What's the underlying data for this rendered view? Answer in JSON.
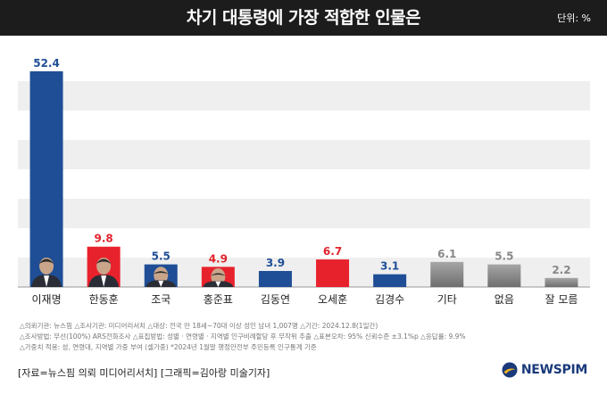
{
  "header": {
    "title": "차기 대통령에 가장 적합한 인물은",
    "unit": "단위: %"
  },
  "chart_data": {
    "type": "bar",
    "title": "차기 대통령에 가장 적합한 인물은",
    "ylabel": "단위: %",
    "ylim": [
      0,
      55
    ],
    "categories": [
      "이재명",
      "한동훈",
      "조국",
      "홍준표",
      "김동연",
      "오세훈",
      "김경수",
      "기타",
      "없음",
      "잘 모름"
    ],
    "values": [
      52.4,
      9.8,
      5.5,
      4.9,
      3.9,
      6.7,
      3.1,
      6.1,
      5.5,
      2.2
    ],
    "labels": [
      "52.4",
      "9.8",
      "5.5",
      "4.9",
      "3.9",
      "6.7",
      "3.1",
      "6.1",
      "5.5",
      "2.2"
    ],
    "colors": [
      "#1f4e96",
      "#e8222c",
      "#1f4e96",
      "#e8222c",
      "#1f4e96",
      "#e8222c",
      "#1f4e96",
      "#8c8c8c",
      "#8c8c8c",
      "#8c8c8c"
    ],
    "label_colors": [
      "#1f4e96",
      "#e0242c",
      "#1f4e96",
      "#e0242c",
      "#1f4e96",
      "#e0242c",
      "#1f4e96",
      "#888888",
      "#888888",
      "#888888"
    ],
    "photo_categories": [
      "이재명",
      "한동훈",
      "조국",
      "홍준표"
    ]
  },
  "notes": [
    "△의뢰기관: 뉴스핌  △조사기관: 미디어리서치  △대상: 전국 만 18세~70대 이상 성인 남녀 1,007명  △기간: 2024.12.8(1일간)",
    "△조사방법: 무선(100%) ARS전화조사  △표집방법: 성별 · 연령별 · 지역별 인구비례할당 후 무작위 추출  △표본오차: 95% 신뢰수준 ±3.1%p  △응답률: 9.9%",
    "△가중치 적용: 성, 연령대, 지역별 가중 부여 (셀가중) *2024년 1월말 행정안전부 주민등록 인구통계 기준"
  ],
  "credit": "[자료=뉴스핌 의뢰 미디어리서치] [그래픽=김아랑 미술기자]",
  "logo": {
    "text": "NEWSPIM"
  }
}
